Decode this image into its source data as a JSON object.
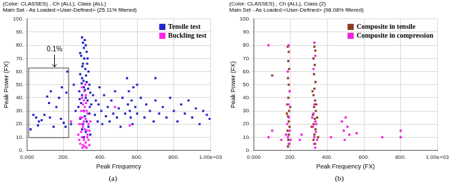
{
  "chart_data": [
    {
      "type": "scatter",
      "title": "(Color: CLASSES) , Ch (ALL), Class (ALL)",
      "subtitle": "Main Set - As Loaded:<User-Defined> (25.11% filtered)",
      "caption": "(a)",
      "x_label": "Peak Frequency",
      "y_label": "Peak Power (FX)",
      "xlim": [
        0,
        1000
      ],
      "xticks": [
        {
          "value": 0,
          "label": "0.000"
        },
        {
          "value": 200,
          "label": "200."
        },
        {
          "value": 400,
          "label": "400."
        },
        {
          "value": 600,
          "label": "600."
        },
        {
          "value": 800,
          "label": "800."
        },
        {
          "value": 1000,
          "label": "1.00e+03"
        }
      ],
      "ylim": [
        0,
        100
      ],
      "yticks": [
        {
          "value": 0,
          "label": "0."
        },
        {
          "value": 10,
          "label": "10."
        },
        {
          "value": 20,
          "label": "20."
        },
        {
          "value": 30,
          "label": "30."
        },
        {
          "value": 40,
          "label": "40."
        },
        {
          "value": 50,
          "label": "50."
        },
        {
          "value": 60,
          "label": "60."
        },
        {
          "value": 70,
          "label": "70."
        },
        {
          "value": 80,
          "label": "80."
        },
        {
          "value": 90,
          "label": "90."
        },
        {
          "value": 100,
          "label": "100."
        }
      ],
      "grid": true,
      "legend": "upper right",
      "marker": "square",
      "annotations": [
        {
          "text": "0.1%",
          "x": 150,
          "y": 74,
          "box_x": [
            0,
            225
          ],
          "box_y": [
            10,
            63
          ]
        }
      ],
      "series": [
        {
          "name": "Tensile test",
          "color": "#2222c8",
          "x": [
            20,
            35,
            50,
            65,
            80,
            95,
            110,
            125,
            130,
            145,
            160,
            175,
            185,
            200,
            215,
            220,
            210,
            60,
            120,
            190,
            300,
            305,
            310,
            315,
            320,
            325,
            295,
            330,
            305,
            318,
            335,
            290,
            300,
            325,
            340,
            310,
            285,
            345,
            300,
            320,
            330,
            295,
            350,
            280,
            310,
            340,
            315,
            290,
            325,
            305,
            335,
            300,
            320,
            345,
            310,
            290,
            312,
            328,
            302,
            322,
            308,
            316,
            298,
            333,
            287,
            342,
            265,
            360,
            370,
            375,
            385,
            390,
            395,
            405,
            410,
            420,
            430,
            440,
            450,
            460,
            470,
            480,
            490,
            500,
            510,
            520,
            535,
            545,
            550,
            555,
            560,
            565,
            570,
            575,
            580,
            590,
            600,
            620,
            640,
            650,
            670,
            690,
            700,
            720,
            740,
            760,
            780,
            800,
            820,
            840,
            860,
            880,
            900,
            920,
            940,
            960,
            980,
            995,
            255,
            240,
            700,
            600
          ],
          "values": [
            16,
            27,
            25,
            22,
            23,
            27,
            41,
            25,
            45,
            18,
            33,
            40,
            24,
            21,
            44,
            60,
            18,
            19,
            36,
            48,
            86,
            82,
            78,
            84,
            80,
            75,
            72,
            70,
            66,
            62,
            60,
            58,
            55,
            52,
            50,
            48,
            45,
            44,
            42,
            40,
            38,
            36,
            35,
            33,
            30,
            28,
            26,
            24,
            22,
            20,
            18,
            16,
            14,
            12,
            10,
            74,
            70,
            66,
            64,
            57,
            53,
            46,
            51,
            47,
            39,
            33,
            30,
            42,
            27,
            38,
            22,
            35,
            48,
            30,
            20,
            42,
            26,
            33,
            22,
            38,
            28,
            45,
            25,
            32,
            18,
            40,
            28,
            55,
            35,
            45,
            30,
            25,
            38,
            20,
            48,
            33,
            28,
            40,
            25,
            35,
            30,
            22,
            38,
            28,
            33,
            25,
            40,
            30,
            22,
            35,
            28,
            38,
            25,
            32,
            20,
            30,
            27,
            24,
            50,
            20,
            55,
            50
          ]
        },
        {
          "name": "Buckling test",
          "color": "#ff22ee",
          "x": [
            300,
            310,
            320,
            305,
            315,
            325,
            295,
            330,
            290,
            300,
            310,
            320,
            335,
            285,
            305,
            315,
            325,
            295,
            330,
            300,
            310,
            320,
            290,
            305,
            315,
            325,
            335,
            340,
            280,
            345,
            300,
            312,
            318,
            308,
            322,
            298,
            328,
            302,
            240,
            480,
            560,
            340,
            285
          ],
          "values": [
            40,
            38,
            42,
            35,
            33,
            30,
            30,
            28,
            25,
            25,
            22,
            24,
            20,
            20,
            18,
            16,
            15,
            14,
            12,
            10,
            8,
            6,
            5,
            4,
            3,
            2,
            8,
            15,
            12,
            22,
            48,
            45,
            50,
            30,
            36,
            20,
            10,
            2,
            22,
            33,
            19,
            4,
            8
          ]
        }
      ]
    },
    {
      "type": "scatter",
      "title": "(Color: CLASSES) , Ch (ALL), Class (2)",
      "subtitle": "Main Set - As Loaded:<User-Defined> (98.08% filtered)",
      "caption": "(b)",
      "x_label": "Peak Frequency (FX)",
      "y_label": "Peak Power (FX)",
      "xlim": [
        0,
        1000
      ],
      "xticks": [
        {
          "value": 0,
          "label": "0.000"
        },
        {
          "value": 200,
          "label": "200."
        },
        {
          "value": 400,
          "label": "400."
        },
        {
          "value": 600,
          "label": "600."
        },
        {
          "value": 800,
          "label": "800."
        },
        {
          "value": 1000,
          "label": "1.00e+03"
        }
      ],
      "ylim": [
        0,
        100
      ],
      "yticks": [
        {
          "value": 0,
          "label": "0."
        },
        {
          "value": 10,
          "label": "10."
        },
        {
          "value": 20,
          "label": "20."
        },
        {
          "value": 30,
          "label": "30."
        },
        {
          "value": 40,
          "label": "40."
        },
        {
          "value": 50,
          "label": "50."
        },
        {
          "value": 60,
          "label": "60."
        },
        {
          "value": 70,
          "label": "70."
        },
        {
          "value": 80,
          "label": "80."
        },
        {
          "value": 90,
          "label": "90."
        },
        {
          "value": 100,
          "label": "100."
        }
      ],
      "grid": true,
      "legend": "upper right",
      "marker": "square",
      "series": [
        {
          "name": "Composite in tensile",
          "color": "#8b3a1e",
          "x": [
            185,
            190,
            188,
            192,
            186,
            190,
            195,
            188,
            182,
            192,
            186,
            190,
            195,
            184,
            190,
            188,
            193,
            186,
            180,
            198,
            330,
            335,
            325,
            332,
            328,
            336,
            330,
            325,
            334,
            328,
            338,
            322,
            332,
            326,
            336,
            330,
            325,
            334,
            340,
            320,
            345,
            315,
            350,
            100
          ],
          "values": [
            79,
            75,
            68,
            62,
            55,
            50,
            45,
            40,
            35,
            30,
            26,
            22,
            18,
            15,
            12,
            8,
            5,
            3,
            28,
            33,
            79,
            76,
            70,
            65,
            58,
            52,
            47,
            42,
            38,
            33,
            30,
            27,
            24,
            20,
            16,
            12,
            8,
            5,
            35,
            45,
            25,
            18,
            10,
            57
          ]
        },
        {
          "name": "Composite in compression",
          "color": "#ee22dd",
          "x": [
            330,
            335,
            325,
            190,
            185,
            195,
            188,
            190,
            182,
            196,
            186,
            190,
            175,
            200,
            330,
            325,
            335,
            322,
            338,
            330,
            328,
            334,
            340,
            318,
            345,
            80,
            80,
            100,
            150,
            250,
            260,
            480,
            490,
            500,
            510,
            520,
            495,
            560,
            800,
            800,
            700,
            420
          ],
          "values": [
            82,
            72,
            62,
            80,
            60,
            45,
            35,
            25,
            20,
            15,
            10,
            5,
            12,
            8,
            35,
            28,
            22,
            18,
            14,
            10,
            5,
            2,
            20,
            25,
            8,
            80,
            10,
            15,
            8,
            8,
            12,
            22,
            15,
            25,
            18,
            12,
            8,
            13,
            15,
            10,
            10,
            10
          ]
        }
      ]
    }
  ]
}
